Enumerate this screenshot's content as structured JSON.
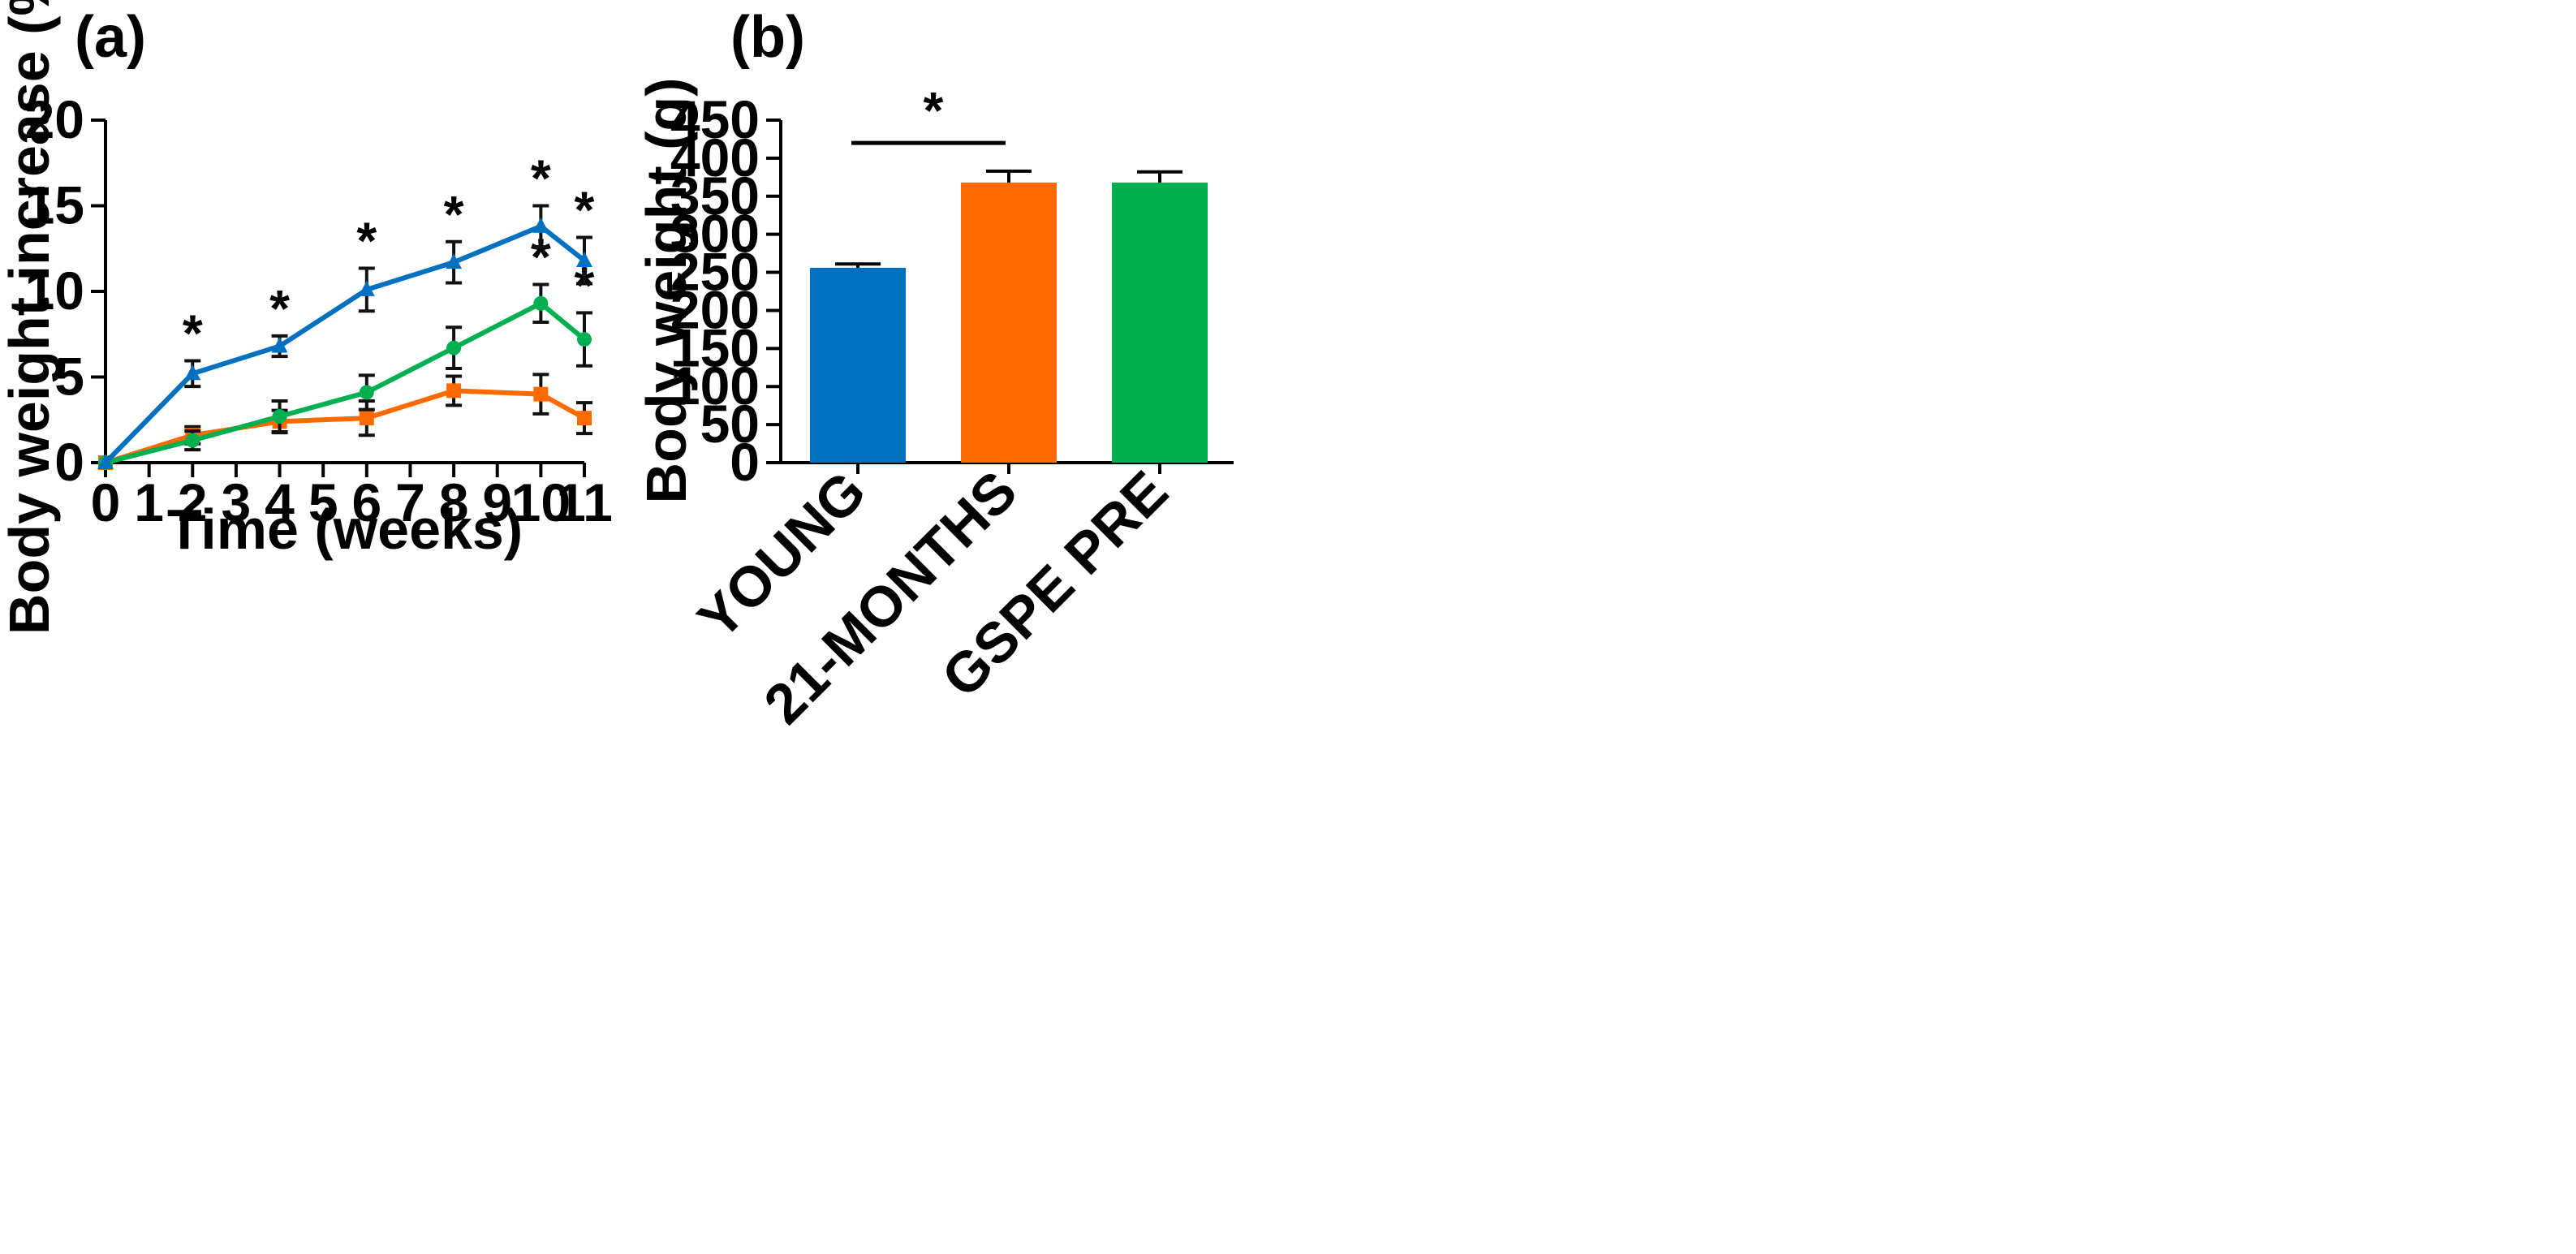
{
  "figure_labels": {
    "a": "(a)",
    "b": "(b)"
  },
  "chart_data": [
    {
      "type": "line",
      "panel": "(a)",
      "xlabel": "Time (weeks)",
      "ylabel": "Body weight increase (%)",
      "xlim": [
        0,
        11
      ],
      "ylim": [
        0,
        20
      ],
      "xticks": [
        0,
        1,
        2,
        3,
        4,
        5,
        6,
        7,
        8,
        9,
        10,
        11
      ],
      "yticks": [
        0,
        5,
        10,
        15,
        20
      ],
      "grid": false,
      "legend": "none",
      "series": [
        {
          "name": "blue",
          "color": "#0070C0",
          "marker": "triangle",
          "x": [
            0,
            2,
            4,
            6,
            8,
            10,
            11
          ],
          "y": [
            0,
            5.2,
            6.8,
            10.1,
            11.7,
            13.8,
            11.8
          ],
          "err": [
            0,
            0.75,
            0.6,
            1.25,
            1.2,
            1.2,
            1.35
          ],
          "significant": [
            false,
            true,
            true,
            true,
            true,
            true,
            true
          ]
        },
        {
          "name": "green",
          "color": "#00B050",
          "marker": "circle",
          "x": [
            0,
            2,
            4,
            6,
            8,
            10,
            11
          ],
          "y": [
            0,
            1.3,
            2.7,
            4.1,
            6.7,
            9.3,
            7.2
          ],
          "err": [
            0,
            0.55,
            0.9,
            1.0,
            1.2,
            1.1,
            1.55
          ],
          "significant": [
            false,
            false,
            false,
            false,
            false,
            true,
            true
          ]
        },
        {
          "name": "orange",
          "color": "#FF6A00",
          "marker": "square",
          "x": [
            0,
            2,
            4,
            6,
            8,
            10,
            11
          ],
          "y": [
            0,
            1.6,
            2.4,
            2.6,
            4.2,
            4.0,
            2.6
          ],
          "err": [
            0,
            0.5,
            0.65,
            1.0,
            0.85,
            1.15,
            0.9
          ],
          "significant": [
            false,
            false,
            false,
            false,
            false,
            false,
            false
          ]
        }
      ],
      "annotations": [
        "*"
      ]
    },
    {
      "type": "bar",
      "panel": "(b)",
      "xlabel": "",
      "ylabel": "Body weight (g)",
      "ylim": [
        0,
        450
      ],
      "yticks": [
        0,
        50,
        100,
        150,
        200,
        250,
        300,
        350,
        400,
        450
      ],
      "grid": false,
      "legend": "none",
      "categories": [
        "YOUNG",
        "21-MONTHS",
        "GSPE PRE"
      ],
      "values": [
        256,
        368,
        368
      ],
      "errors": [
        5,
        15,
        14
      ],
      "colors": [
        "#0070C0",
        "#FF6A00",
        "#00B050"
      ],
      "significance": {
        "from": "YOUNG",
        "to": "21-MONTHS",
        "label": "*"
      }
    }
  ]
}
